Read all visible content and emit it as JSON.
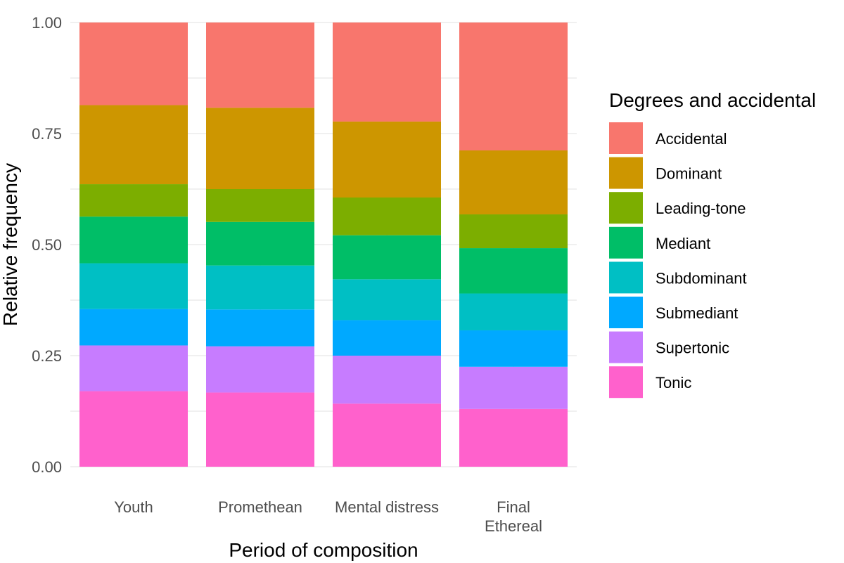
{
  "chart_data": {
    "type": "bar",
    "stacked": true,
    "categories": [
      "Youth",
      "Promethean",
      "Mental distress",
      "Final\nEthereal"
    ],
    "xlabel": "Period of composition",
    "ylabel": "Relative frequency",
    "ylim": [
      0,
      1
    ],
    "yticks": [
      "0.00",
      "0.25",
      "0.50",
      "0.75",
      "1.00"
    ],
    "grid": true,
    "legend": {
      "title": "Degrees and accidental",
      "position": "right"
    },
    "series": [
      {
        "name": "Tonic",
        "color": "#FF61CC",
        "values": [
          0.17,
          0.167,
          0.142,
          0.13
        ]
      },
      {
        "name": "Supertonic",
        "color": "#C77CFF",
        "values": [
          0.103,
          0.104,
          0.108,
          0.095
        ]
      },
      {
        "name": "Submediant",
        "color": "#00A9FF",
        "values": [
          0.082,
          0.083,
          0.08,
          0.082
        ]
      },
      {
        "name": "Subdominant",
        "color": "#00BFC4",
        "values": [
          0.103,
          0.099,
          0.092,
          0.083
        ]
      },
      {
        "name": "Mediant",
        "color": "#00BE67",
        "values": [
          0.105,
          0.098,
          0.099,
          0.102
        ]
      },
      {
        "name": "Leading-tone",
        "color": "#7CAE00",
        "values": [
          0.073,
          0.074,
          0.085,
          0.076
        ]
      },
      {
        "name": "Dominant",
        "color": "#CD9600",
        "values": [
          0.178,
          0.183,
          0.171,
          0.144
        ]
      },
      {
        "name": "Accidental",
        "color": "#F8766D",
        "values": [
          0.186,
          0.192,
          0.223,
          0.288
        ]
      }
    ],
    "legend_order": [
      "Accidental",
      "Dominant",
      "Leading-tone",
      "Mediant",
      "Subdominant",
      "Submediant",
      "Supertonic",
      "Tonic"
    ]
  }
}
